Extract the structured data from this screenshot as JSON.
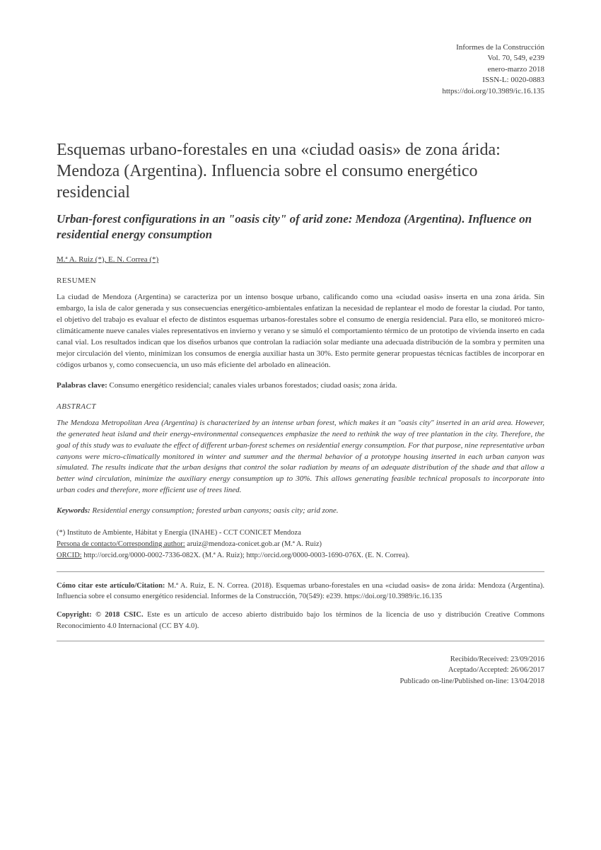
{
  "header": {
    "journal": "Informes de la Construcción",
    "volume": "Vol. 70, 549, e239",
    "date": "enero-marzo 2018",
    "issn": "ISSN-L: 0020-0883",
    "doi": "https://doi.org/10.3989/ic.16.135"
  },
  "title": {
    "main": "Esquemas urbano-forestales en una «ciudad oasis» de zona árida: Mendoza (Argentina). Influencia sobre el consumo energético residencial",
    "sub": "Urban-forest configurations in an \"oasis city\" of arid zone: Mendoza (Argentina). Influence on residential energy consumption"
  },
  "authors": "M.ª A. Ruiz (*), E. N. Correa (*)",
  "resumen": {
    "heading": "RESUMEN",
    "text": "La ciudad de Mendoza (Argentina) se caracteriza por un intenso bosque urbano, calificando como una «ciudad oasis» inserta en una zona árida. Sin embargo, la isla de calor generada y sus consecuencias energético-ambientales enfatizan la necesidad de replantear el modo de forestar la ciudad. Por tanto, el objetivo del trabajo es evaluar el efecto de distintos esquemas urbanos-forestales sobre el consumo de energía residencial. Para ello, se monitoreó micro-climáticamente nueve canales viales representativos en invierno y verano y se simuló el comportamiento térmico de un prototipo de vivienda inserto en cada canal vial. Los resultados indican que los diseños urbanos que controlan la radiación solar mediante una adecuada distribución de la sombra y permiten una mejor circulación del viento, minimizan los consumos de energía auxiliar hasta un 30%. Esto permite generar propuestas técnicas factibles de incorporar en códigos urbanos y, como consecuencia, un uso más eficiente del arbolado en alineación."
  },
  "palabras_clave": {
    "label": "Palabras clave:",
    "text": " Consumo energético residencial; canales viales urbanos forestados; ciudad oasis; zona árida."
  },
  "abstract": {
    "heading": "ABSTRACT",
    "text": "The Mendoza Metropolitan Area (Argentina) is characterized by an intense urban forest, which makes it an \"oasis city\" inserted in an arid area. However, the generated heat island and their energy-environmental consequences emphasize the need to rethink the way of tree plantation in the city. Therefore, the goal of this study was to evaluate the effect of different urban-forest schemes on residential energy consumption. For that purpose, nine representative urban canyons were micro-climatically monitored in winter and summer and the thermal behavior of a prototype housing inserted in each urban canyon was simulated. The results indicate that the urban designs that control the solar radiation by means of an adequate distribution of the shade and that allow a better wind circulation, minimize the auxiliary energy consumption up to 30%. This allows generating feasible technical proposals to incorporate into urban codes and therefore, more efficient use of trees lined."
  },
  "keywords": {
    "label": "Keywords:",
    "text": " Residential energy consumption; forested urban canyons; oasis city; arid zone."
  },
  "affiliation": {
    "institute": "(*) Instituto de Ambiente, Hábitat y Energía (INAHE) - CCT CONICET Mendoza",
    "contact_label": "Persona de contacto/Corresponding author:",
    "contact_email": " aruiz@mendoza-conicet.gob.ar (M.ª A. Ruiz)",
    "orcid_label": "ORCID:",
    "orcid_text": " http://orcid.org/0000-0002-7336-082X. (M.ª A. Ruiz); http://orcid.org/0000-0003-1690-076X. (E. N. Correa)."
  },
  "citation": {
    "label": "Cómo citar este artículo/Citation:",
    "text": " M.ª A. Ruiz, E. N. Correa. (2018). Esquemas urbano-forestales en una «ciudad oasis» de zona árida: Mendoza (Argentina). Influencia sobre el consumo energético residencial. Informes de la Construcción, 70(549): e239. https://doi.org/10.3989/ic.16.135"
  },
  "copyright": {
    "label": "Copyright: © 2018 CSIC.",
    "text": " Este es un artículo de acceso abierto distribuido bajo los términos de la licencia de uso y distribución Creative Commons Reconocimiento 4.0 Internacional (CC BY 4.0)."
  },
  "dates": {
    "received": "Recibido/Received: 23/09/2016",
    "accepted": "Aceptado/Accepted: 26/06/2017",
    "published": "Publicado on-line/Published on-line: 13/04/2018"
  }
}
